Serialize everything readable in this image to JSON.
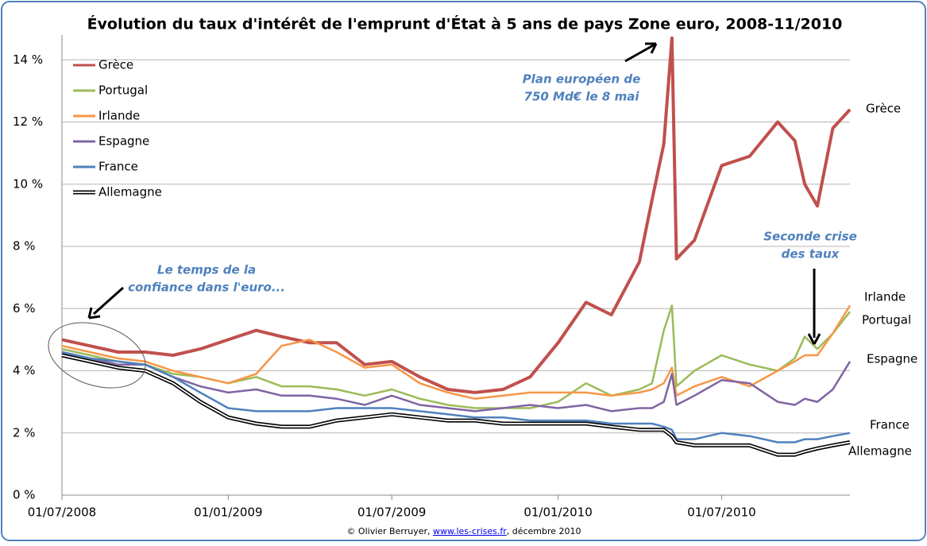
{
  "chart_data": {
    "type": "line",
    "title": "Évolution du taux d'intérêt de l'emprunt d'État à 5 ans de pays Zone euro, 2008-11/2010",
    "x": [
      "2008-07-01",
      "2008-08-01",
      "2008-09-01",
      "2008-10-01",
      "2008-11-01",
      "2008-12-01",
      "2009-01-01",
      "2009-02-01",
      "2009-03-01",
      "2009-04-01",
      "2009-05-01",
      "2009-06-01",
      "2009-07-01",
      "2009-08-01",
      "2009-09-01",
      "2009-10-01",
      "2009-11-01",
      "2009-12-01",
      "2010-01-01",
      "2010-02-01",
      "2010-03-01",
      "2010-04-01",
      "2010-04-15",
      "2010-04-28",
      "2010-05-07",
      "2010-05-12",
      "2010-06-01",
      "2010-07-01",
      "2010-08-01",
      "2010-09-01",
      "2010-09-20",
      "2010-10-01",
      "2010-10-15",
      "2010-11-01",
      "2010-11-20"
    ],
    "series": [
      {
        "name": "Grèce",
        "color": "#c0504d",
        "values": [
          5.0,
          4.8,
          4.6,
          4.6,
          4.5,
          4.7,
          5.0,
          5.3,
          5.1,
          4.9,
          4.9,
          4.2,
          4.3,
          3.8,
          3.4,
          3.3,
          3.4,
          3.8,
          4.9,
          6.2,
          5.8,
          7.5,
          9.5,
          11.3,
          14.7,
          7.6,
          8.2,
          10.6,
          10.9,
          12.0,
          11.4,
          10.0,
          9.3,
          11.8,
          12.4
        ]
      },
      {
        "name": "Portugal",
        "color": "#9bbb59",
        "values": [
          4.7,
          4.5,
          4.3,
          4.2,
          3.9,
          3.8,
          3.6,
          3.8,
          3.5,
          3.5,
          3.4,
          3.2,
          3.4,
          3.1,
          2.9,
          2.8,
          2.8,
          2.8,
          3.0,
          3.6,
          3.2,
          3.4,
          3.6,
          5.3,
          6.1,
          3.5,
          4.0,
          4.5,
          4.2,
          4.0,
          4.4,
          5.1,
          4.7,
          5.2,
          5.9
        ]
      },
      {
        "name": "Irlande",
        "color": "#f79646",
        "values": [
          4.8,
          4.6,
          4.4,
          4.3,
          4.0,
          3.8,
          3.6,
          3.9,
          4.8,
          5.0,
          4.6,
          4.1,
          4.2,
          3.6,
          3.3,
          3.1,
          3.2,
          3.3,
          3.3,
          3.3,
          3.2,
          3.3,
          3.4,
          3.6,
          4.1,
          3.2,
          3.5,
          3.8,
          3.5,
          4.0,
          4.3,
          4.5,
          4.5,
          5.2,
          6.1
        ]
      },
      {
        "name": "Espagne",
        "color": "#8064a2",
        "values": [
          4.6,
          4.4,
          4.2,
          4.2,
          3.8,
          3.5,
          3.3,
          3.4,
          3.2,
          3.2,
          3.1,
          2.9,
          3.2,
          2.9,
          2.8,
          2.7,
          2.8,
          2.9,
          2.8,
          2.9,
          2.7,
          2.8,
          2.8,
          3.0,
          3.9,
          2.9,
          3.2,
          3.7,
          3.6,
          3.0,
          2.9,
          3.1,
          3.0,
          3.4,
          4.3
        ]
      },
      {
        "name": "France",
        "color": "#4f81bd",
        "values": [
          4.6,
          4.4,
          4.3,
          4.2,
          3.8,
          3.3,
          2.8,
          2.7,
          2.7,
          2.7,
          2.8,
          2.8,
          2.8,
          2.7,
          2.6,
          2.5,
          2.5,
          2.4,
          2.4,
          2.4,
          2.3,
          2.3,
          2.3,
          2.2,
          2.1,
          1.8,
          1.8,
          2.0,
          1.9,
          1.7,
          1.7,
          1.8,
          1.8,
          1.9,
          2.0
        ]
      },
      {
        "name": "Allemagne",
        "color": "#000000",
        "values": [
          4.5,
          4.3,
          4.1,
          4.0,
          3.6,
          3.0,
          2.5,
          2.3,
          2.2,
          2.2,
          2.4,
          2.5,
          2.6,
          2.5,
          2.4,
          2.4,
          2.3,
          2.3,
          2.3,
          2.3,
          2.2,
          2.1,
          2.1,
          2.1,
          1.9,
          1.7,
          1.6,
          1.6,
          1.6,
          1.3,
          1.3,
          1.4,
          1.5,
          1.6,
          1.7
        ]
      }
    ],
    "xlim": [
      "2008-07-01",
      "2010-11-20"
    ],
    "xticks": [
      {
        "value": "2008-07-01",
        "label": "01/07/2008"
      },
      {
        "value": "2009-01-01",
        "label": "01/01/2009"
      },
      {
        "value": "2009-07-01",
        "label": "01/07/2009"
      },
      {
        "value": "2010-01-01",
        "label": "01/01/2010"
      },
      {
        "value": "2010-07-01",
        "label": "01/07/2010"
      }
    ],
    "ylim": [
      0,
      14.8
    ],
    "yticks": [
      {
        "value": 0,
        "label": "0 %"
      },
      {
        "value": 2,
        "label": "2 %"
      },
      {
        "value": 4,
        "label": "4 %"
      },
      {
        "value": 6,
        "label": "6 %"
      },
      {
        "value": 8,
        "label": "8 %"
      },
      {
        "value": 10,
        "label": "10 %"
      },
      {
        "value": 12,
        "label": "12 %"
      },
      {
        "value": 14,
        "label": "14 %"
      }
    ],
    "grid": true,
    "legend": "upper left",
    "annotations": [
      [
        "Plan européen de",
        "750 Md€ le 8 mai"
      ],
      [
        "Seconde crise",
        "des taux"
      ],
      [
        "Le temps de la",
        "confiance dans l'euro..."
      ]
    ],
    "source": [
      "© Olivier Berruyer, ",
      "www.les-crises.fr",
      ", décembre 2010"
    ]
  }
}
